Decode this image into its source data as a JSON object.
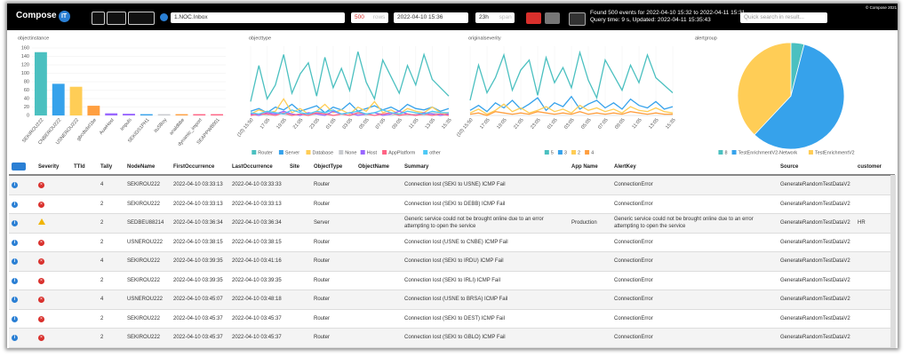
{
  "toolbar": {
    "logo": "Compose",
    "logo_badge": "IT",
    "path": "1.NOC.Inbox",
    "rows": 500,
    "rows_label": "rows",
    "date": "2022-04-10 15:36",
    "span": "23h",
    "span_label": "span",
    "status_line1": "Found 500 events for 2022-04-10 15:32 to 2022-04-11 15:31 ,",
    "status_line2": "Query time: 9 s, Updated: 2022-04-11 15:35:43",
    "search_placeholder": "Quick search in result...",
    "copyright": "© Compose 2021"
  },
  "chart_data": [
    {
      "type": "bar",
      "title": "objectinstance",
      "categories": [
        "SEKIROU222",
        "CNBEROU222",
        "USNEROU222",
        "gbcdsdxl1be",
        "AuwHost",
        "Impuls",
        "SEKIDS1PH1",
        "ituSBoy",
        "analdbbe",
        "dynamic_import",
        "SEAPPWB001"
      ],
      "values": [
        150,
        75,
        68,
        23,
        5,
        4,
        3,
        3,
        3,
        3,
        3
      ],
      "colors": [
        "#4bc0c0",
        "#36a2eb",
        "#ffcd56",
        "#ff9f40",
        "#9966ff",
        "#9966ff",
        "#36a2eb",
        "#c9cbcf",
        "#ff9f40",
        "#ff6384",
        "#ff6384"
      ],
      "ylim": [
        0,
        160
      ],
      "yticks": [
        0,
        20,
        40,
        60,
        80,
        100,
        120,
        140,
        160
      ]
    },
    {
      "type": "line",
      "title": "objecttype",
      "categories": [
        "(10) 15:50",
        null,
        "17:05",
        null,
        "19:05",
        null,
        "21:05",
        null,
        "23:05",
        null,
        "01:05",
        null,
        "03:05",
        null,
        "05:05",
        null,
        "07:05",
        null,
        "09:05",
        null,
        "11:05",
        null,
        "13:05",
        null,
        "15:35"
      ],
      "ylim": [
        0,
        50
      ],
      "series": [
        {
          "name": "Router",
          "color": "#4bc0c0",
          "values": [
            10,
            36,
            12,
            22,
            44,
            16,
            30,
            38,
            14,
            42,
            20,
            34,
            18,
            46,
            24,
            12,
            40,
            28,
            16,
            36,
            22,
            44,
            26,
            20,
            14
          ]
        },
        {
          "name": "Server",
          "color": "#36a2eb",
          "values": [
            3,
            5,
            2,
            6,
            4,
            8,
            3,
            5,
            7,
            2,
            6,
            4,
            9,
            3,
            5,
            7,
            4,
            6,
            3,
            8,
            5,
            4,
            6,
            3,
            5
          ]
        },
        {
          "name": "Database",
          "color": "#ffcd56",
          "values": [
            1,
            4,
            2,
            3,
            12,
            2,
            5,
            1,
            3,
            8,
            2,
            4,
            1,
            6,
            3,
            10,
            2,
            4,
            1,
            5,
            3,
            2,
            6,
            2,
            1
          ]
        },
        {
          "name": "None",
          "color": "#c9cbcf",
          "values": [
            0,
            1,
            0,
            2,
            1,
            0,
            1,
            0,
            1,
            2,
            0,
            1,
            0,
            1,
            0,
            2,
            1,
            0,
            1,
            0,
            1,
            0,
            2,
            1,
            0
          ]
        },
        {
          "name": "Host",
          "color": "#9966ff",
          "values": [
            1,
            0,
            2,
            1,
            3,
            1,
            0,
            2,
            1,
            0,
            3,
            1,
            2,
            0,
            1,
            2,
            0,
            1,
            3,
            1,
            0,
            2,
            1,
            0,
            1
          ]
        },
        {
          "name": "AppPlatform",
          "color": "#ff6384",
          "values": [
            0,
            1,
            1,
            0,
            2,
            0,
            1,
            0,
            2,
            1,
            0,
            1,
            0,
            2,
            1,
            0,
            1,
            2,
            0,
            1,
            0,
            1,
            0,
            1,
            0
          ]
        },
        {
          "name": "other",
          "color": "#4dc9f6",
          "values": [
            2,
            1,
            3,
            2,
            1,
            4,
            2,
            1,
            3,
            2,
            4,
            1,
            2,
            3,
            1,
            2,
            4,
            2,
            1,
            3,
            2,
            1,
            3,
            2,
            2
          ]
        }
      ]
    },
    {
      "type": "line",
      "title": "originalseverity",
      "categories": [
        "(10) 15:50",
        null,
        "17:05",
        null,
        "19:05",
        null,
        "21:05",
        null,
        "23:05",
        null,
        "01:05",
        null,
        "03:05",
        null,
        "05:05",
        null,
        "07:05",
        null,
        "09:05",
        null,
        "11:05",
        null,
        "13:05",
        null,
        "15:35"
      ],
      "ylim": [
        0,
        55
      ],
      "series": [
        {
          "name": "5",
          "color": "#4bc0c0",
          "values": [
            12,
            40,
            18,
            30,
            48,
            20,
            36,
            44,
            16,
            46,
            26,
            38,
            22,
            50,
            28,
            14,
            44,
            32,
            20,
            40,
            26,
            48,
            30,
            24,
            18
          ]
        },
        {
          "name": "3",
          "color": "#36a2eb",
          "values": [
            4,
            8,
            3,
            10,
            6,
            12,
            5,
            9,
            14,
            4,
            10,
            7,
            15,
            5,
            9,
            12,
            6,
            10,
            5,
            13,
            8,
            6,
            11,
            5,
            7
          ]
        },
        {
          "name": "2",
          "color": "#ffcd56",
          "values": [
            2,
            5,
            1,
            4,
            9,
            3,
            6,
            2,
            4,
            7,
            3,
            5,
            2,
            8,
            4,
            6,
            3,
            5,
            2,
            7,
            4,
            3,
            6,
            3,
            2
          ]
        },
        {
          "name": "4",
          "color": "#ff9f40",
          "values": [
            1,
            2,
            0,
            3,
            2,
            1,
            2,
            1,
            3,
            2,
            1,
            2,
            1,
            3,
            1,
            2,
            1,
            2,
            1,
            3,
            2,
            1,
            2,
            1,
            1
          ]
        }
      ]
    },
    {
      "type": "pie",
      "title": "alertgroup",
      "categories": [
        "8",
        "TestEnrichmentV2-Network",
        "TestEnrichmentV2"
      ],
      "values": [
        4,
        58,
        38
      ],
      "colors": [
        "#4bc0c0",
        "#36a2eb",
        "#ffcd56"
      ]
    }
  ],
  "table": {
    "headers": [
      "Severity",
      "TTId",
      "Tally",
      "NodeName",
      "FirstOccurrence",
      "LastOccurrence",
      "Site",
      "ObjectType",
      "ObjectName",
      "Summary",
      "App Name",
      "AlertKey",
      "Source",
      "customer"
    ],
    "rows": [
      {
        "tally": 4,
        "node": "SEKIROU222",
        "first": "2022-04-10 03:33:13",
        "last": "2022-04-10 03:33:33",
        "type": "Router",
        "summary": "Connection lost (SEKI to USNE) ICMP Fail",
        "alertkey": "ConnectionError",
        "source": "GenerateRandomTestDataV2"
      },
      {
        "tally": 2,
        "node": "SEKIROU222",
        "first": "2022-04-10 03:33:13",
        "last": "2022-04-10 03:33:13",
        "type": "Router",
        "summary": "Connection lost (SEKI to DEBB) ICMP Fail",
        "alertkey": "ConnectionError",
        "source": "GenerateRandomTestDataV2"
      },
      {
        "tally": 2,
        "node": "SEDBEU88214",
        "first": "2022-04-10 03:36:34",
        "last": "2022-04-10 03:36:34",
        "type": "Server",
        "summary": "Generic service could not be brought online due to an error attempting to open the service",
        "app": "Production",
        "alertkey": "Generic service could not be brought online due to an error attempting to open the service",
        "source": "GenerateRandomTestDataV2",
        "customer": "HR"
      },
      {
        "tally": 2,
        "node": "USNEROU222",
        "first": "2022-04-10 03:38:15",
        "last": "2022-04-10 03:38:15",
        "type": "Router",
        "summary": "Connection lost (USNE to CNBE) ICMP Fail",
        "alertkey": "ConnectionError",
        "source": "GenerateRandomTestDataV2"
      },
      {
        "tally": 4,
        "node": "SEKIROU222",
        "first": "2022-04-10 03:39:35",
        "last": "2022-04-10 03:41:16",
        "type": "Router",
        "summary": "Connection lost (SEKI to IRDU) ICMP Fail",
        "alertkey": "ConnectionError",
        "source": "GenerateRandomTestDataV2"
      },
      {
        "tally": 2,
        "node": "SEKIROU222",
        "first": "2022-04-10 03:39:35",
        "last": "2022-04-10 03:39:35",
        "type": "Router",
        "summary": "Connection lost (SEKI to IRLI) ICMP Fail",
        "alertkey": "ConnectionError",
        "source": "GenerateRandomTestDataV2"
      },
      {
        "tally": 4,
        "node": "USNEROU222",
        "first": "2022-04-10 03:45:07",
        "last": "2022-04-10 03:48:18",
        "type": "Router",
        "summary": "Connection lost (USNE to BRSA) ICMP Fail",
        "alertkey": "ConnectionError",
        "source": "GenerateRandomTestDataV2"
      },
      {
        "tally": 2,
        "node": "SEKIROU222",
        "first": "2022-04-10 03:45:37",
        "last": "2022-04-10 03:45:37",
        "type": "Router",
        "summary": "Connection lost (SEKI to DEST) ICMP Fail",
        "alertkey": "ConnectionError",
        "source": "GenerateRandomTestDataV2"
      },
      {
        "tally": 2,
        "node": "SEKIROU222",
        "first": "2022-04-10 03:45:37",
        "last": "2022-04-10 03:45:37",
        "type": "Router",
        "summary": "Connection lost (SEKI to GBLO) ICMP Fail",
        "alertkey": "ConnectionError",
        "source": "GenerateRandomTestDataV2"
      }
    ]
  }
}
